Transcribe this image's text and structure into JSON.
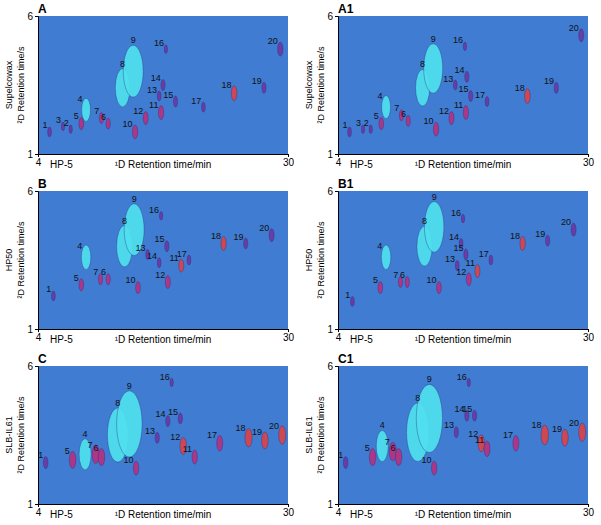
{
  "chart_data": [
    {
      "type": "scatter",
      "title": "A",
      "x_column": "HP-5",
      "x_label": "¹D Retention time/min",
      "y_column": "Supelcowax",
      "y_label": "²D Retention time/s",
      "xlim": [
        4,
        30
      ],
      "xticks": [
        4,
        30
      ],
      "ylim": [
        1,
        6
      ],
      "yticks": [
        1,
        6
      ],
      "peak_labels": [
        "1",
        "3",
        "2",
        "5",
        "4",
        "7",
        "6",
        "8",
        "9",
        "10",
        "16",
        "14",
        "13",
        "15",
        "11",
        "12",
        "17",
        "18",
        "19",
        "20"
      ],
      "x": [
        5.2,
        6.6,
        7.4,
        8.5,
        9.0,
        10.6,
        11.3,
        12.8,
        13.9,
        14.1,
        17.3,
        17.0,
        16.6,
        18.3,
        16.8,
        15.2,
        21.2,
        24.4,
        27.5,
        29.2
      ],
      "values": [
        1.8,
        2.0,
        1.9,
        2.1,
        2.6,
        2.3,
        2.1,
        3.4,
        4.0,
        1.8,
        4.8,
        3.5,
        3.1,
        2.9,
        2.5,
        2.3,
        2.7,
        3.2,
        3.4,
        4.8
      ],
      "sizes": [
        4,
        3,
        3,
        6,
        22,
        5,
        5,
        60,
        110,
        8,
        3,
        5,
        4,
        5,
        8,
        7,
        4,
        9,
        5,
        8
      ],
      "colors": [
        "#6a3aa0",
        "#6a3aa0",
        "#6a3aa0",
        "#b4327f",
        "#4fe0ee",
        "#b4327f",
        "#b4327f",
        "#4fe0ee",
        "#4fe0ee",
        "#b4327f",
        "#6a3aa0",
        "#6a3aa0",
        "#6a3aa0",
        "#6a3aa0",
        "#b4327f",
        "#b4327f",
        "#6a3aa0",
        "#d8434a",
        "#6a3aa0",
        "#6a3aa0"
      ]
    },
    {
      "type": "scatter",
      "title": "A1",
      "x_column": "HP-5",
      "x_label": "¹D Retention time/min",
      "y_column": "Supelcowax",
      "y_label": "²D Retention time/s",
      "xlim": [
        4,
        30
      ],
      "xticks": [
        4,
        30
      ],
      "ylim": [
        1,
        6
      ],
      "yticks": [
        1,
        6
      ],
      "peak_labels": [
        "1",
        "3",
        "2",
        "5",
        "4",
        "7",
        "6",
        "8",
        "9",
        "10",
        "16",
        "14",
        "13",
        "15",
        "11",
        "12",
        "17",
        "18",
        "19",
        "20"
      ],
      "x": [
        5.2,
        6.6,
        7.4,
        8.5,
        9.0,
        10.6,
        11.3,
        12.8,
        13.9,
        14.2,
        17.2,
        17.4,
        16.2,
        17.8,
        17.3,
        15.8,
        19.5,
        23.7,
        26.7,
        29.3
      ],
      "values": [
        1.8,
        1.9,
        1.9,
        2.1,
        2.7,
        2.4,
        2.2,
        3.4,
        4.1,
        1.9,
        4.9,
        3.8,
        3.5,
        3.1,
        2.5,
        2.3,
        2.9,
        3.1,
        3.4,
        5.3
      ],
      "sizes": [
        4,
        3,
        3,
        6,
        22,
        5,
        5,
        55,
        100,
        8,
        3,
        5,
        4,
        5,
        8,
        7,
        4,
        9,
        5,
        7
      ],
      "colors": [
        "#6a3aa0",
        "#6a3aa0",
        "#6a3aa0",
        "#b4327f",
        "#4fe0ee",
        "#b4327f",
        "#b4327f",
        "#4fe0ee",
        "#4fe0ee",
        "#b4327f",
        "#6a3aa0",
        "#6a3aa0",
        "#6a3aa0",
        "#6a3aa0",
        "#b4327f",
        "#b4327f",
        "#6a3aa0",
        "#d8434a",
        "#6a3aa0",
        "#6a3aa0"
      ]
    },
    {
      "type": "scatter",
      "title": "B",
      "x_column": "HP-5",
      "x_label": "¹D Retention time/min",
      "y_column": "HP50",
      "y_label": "²D Retention time/s",
      "xlim": [
        4,
        30
      ],
      "xticks": [
        4,
        30
      ],
      "ylim": [
        1,
        6
      ],
      "yticks": [
        1,
        6
      ],
      "peak_labels": [
        "1",
        "5",
        "4",
        "7",
        "6",
        "8",
        "9",
        "10",
        "16",
        "13",
        "15",
        "14",
        "11",
        "12",
        "17",
        "18",
        "19",
        "20"
      ],
      "x": [
        5.6,
        8.5,
        9.0,
        10.5,
        11.3,
        13.0,
        14.0,
        14.4,
        16.8,
        15.4,
        17.4,
        16.6,
        18.9,
        17.5,
        19.7,
        23.3,
        25.6,
        28.3
      ],
      "values": [
        2.2,
        2.6,
        3.6,
        2.8,
        2.8,
        4.0,
        4.6,
        2.5,
        5.1,
        3.7,
        4.0,
        3.4,
        3.3,
        2.7,
        3.5,
        4.1,
        4.1,
        4.4
      ],
      "sizes": [
        4,
        6,
        25,
        5,
        5,
        70,
        110,
        6,
        3,
        4,
        5,
        4,
        7,
        7,
        4,
        8,
        5,
        7
      ],
      "colors": [
        "#6a3aa0",
        "#b4327f",
        "#4fe0ee",
        "#b4327f",
        "#b4327f",
        "#4fe0ee",
        "#4fe0ee",
        "#b4327f",
        "#6a3aa0",
        "#6a3aa0",
        "#6a3aa0",
        "#6a3aa0",
        "#d8434a",
        "#b4327f",
        "#6a3aa0",
        "#d8434a",
        "#6a3aa0",
        "#6a3aa0"
      ]
    },
    {
      "type": "scatter",
      "title": "B1",
      "x_column": "HP-5",
      "x_label": "¹D Retention time/min",
      "y_column": "HP50",
      "y_label": "²D Retention time/s",
      "xlim": [
        4,
        30
      ],
      "xticks": [
        4,
        30
      ],
      "ylim": [
        1,
        6
      ],
      "yticks": [
        1,
        6
      ],
      "peak_labels": [
        "1",
        "5",
        "4",
        "7",
        "6",
        "8",
        "9",
        "10",
        "16",
        "13",
        "15",
        "14",
        "11",
        "12",
        "17",
        "18",
        "19",
        "20"
      ],
      "x": [
        5.5,
        8.4,
        9.0,
        10.5,
        11.2,
        13.0,
        14.0,
        14.5,
        17.0,
        16.4,
        17.3,
        16.8,
        18.5,
        17.6,
        19.9,
        23.2,
        25.8,
        28.5
      ],
      "values": [
        2.0,
        2.5,
        3.6,
        2.7,
        2.7,
        4.0,
        4.7,
        2.5,
        5.0,
        3.3,
        3.7,
        4.1,
        3.1,
        2.8,
        3.5,
        4.1,
        4.2,
        4.6
      ],
      "sizes": [
        4,
        6,
        25,
        5,
        5,
        65,
        105,
        6,
        3,
        4,
        5,
        4,
        7,
        7,
        4,
        8,
        5,
        7
      ],
      "colors": [
        "#6a3aa0",
        "#b4327f",
        "#4fe0ee",
        "#b4327f",
        "#b4327f",
        "#4fe0ee",
        "#4fe0ee",
        "#b4327f",
        "#6a3aa0",
        "#6a3aa0",
        "#6a3aa0",
        "#6a3aa0",
        "#d8434a",
        "#b4327f",
        "#6a3aa0",
        "#d8434a",
        "#6a3aa0",
        "#6a3aa0"
      ]
    },
    {
      "type": "scatter",
      "title": "C",
      "x_column": "HP-5",
      "x_label": "¹D Retention time/min",
      "y_column": "SLB-IL61",
      "y_label": "²D Retention time/s",
      "xlim": [
        4,
        30
      ],
      "xticks": [
        4,
        30
      ],
      "ylim": [
        1,
        6
      ],
      "yticks": [
        1,
        6
      ],
      "peak_labels": [
        "1",
        "5",
        "4",
        "7",
        "6",
        "8",
        "9",
        "10",
        "16",
        "14",
        "15",
        "13",
        "12",
        "11",
        "17",
        "18",
        "19",
        "20"
      ],
      "x": [
        4.8,
        7.6,
        8.9,
        10.0,
        10.6,
        12.3,
        13.5,
        14.2,
        17.9,
        17.5,
        18.8,
        16.4,
        19.1,
        20.3,
        22.9,
        25.9,
        27.6,
        29.4
      ],
      "values": [
        2.5,
        2.6,
        2.8,
        2.8,
        2.7,
        3.5,
        3.9,
        2.3,
        5.4,
        4.0,
        4.1,
        3.4,
        3.1,
        2.7,
        3.2,
        3.4,
        3.3,
        3.5
      ],
      "sizes": [
        6,
        12,
        40,
        14,
        12,
        120,
        180,
        8,
        3,
        5,
        5,
        5,
        12,
        8,
        10,
        14,
        12,
        14
      ],
      "colors": [
        "#6a3aa0",
        "#b4327f",
        "#4fe0ee",
        "#b4327f",
        "#b4327f",
        "#4fe0ee",
        "#4fe0ee",
        "#b4327f",
        "#6a3aa0",
        "#6a3aa0",
        "#6a3aa0",
        "#6a3aa0",
        "#d8434a",
        "#b4327f",
        "#b4327f",
        "#d8434a",
        "#d8434a",
        "#d8434a"
      ]
    },
    {
      "type": "scatter",
      "title": "C1",
      "x_column": "HP-5",
      "x_label": "¹D Retention time/min",
      "y_column": "SLB-IL61",
      "y_label": "²D Retention time/s",
      "xlim": [
        4,
        30
      ],
      "xticks": [
        4,
        30
      ],
      "ylim": [
        1,
        6
      ],
      "yticks": [
        1,
        6
      ],
      "peak_labels": [
        "1",
        "5",
        "4",
        "7",
        "6",
        "8",
        "9",
        "10",
        "16",
        "14",
        "15",
        "13",
        "12",
        "11",
        "17",
        "18",
        "19",
        "20"
      ],
      "x": [
        4.8,
        7.6,
        8.6,
        9.7,
        10.3,
        12.3,
        13.5,
        14.0,
        17.6,
        17.4,
        18.2,
        16.3,
        18.9,
        19.5,
        22.5,
        25.5,
        27.6,
        29.4
      ],
      "values": [
        2.5,
        2.7,
        3.1,
        2.9,
        2.7,
        3.6,
        4.1,
        2.3,
        5.4,
        4.2,
        4.2,
        3.6,
        3.2,
        3.0,
        3.2,
        3.5,
        3.4,
        3.6
      ],
      "sizes": [
        6,
        12,
        40,
        14,
        12,
        140,
        190,
        8,
        3,
        5,
        5,
        5,
        12,
        10,
        10,
        16,
        12,
        14
      ],
      "colors": [
        "#6a3aa0",
        "#b4327f",
        "#4fe0ee",
        "#b4327f",
        "#b4327f",
        "#4fe0ee",
        "#4fe0ee",
        "#b4327f",
        "#6a3aa0",
        "#6a3aa0",
        "#6a3aa0",
        "#6a3aa0",
        "#d8434a",
        "#b4327f",
        "#b4327f",
        "#d8434a",
        "#d8434a",
        "#d8434a"
      ]
    }
  ]
}
